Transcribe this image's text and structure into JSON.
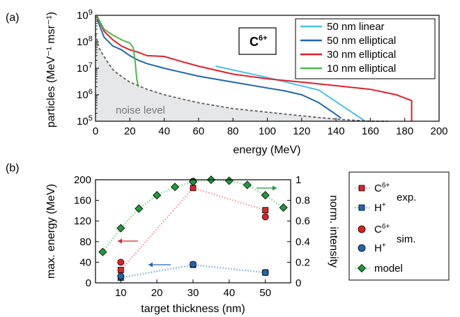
{
  "panel_labels": [
    "(a)",
    "(b)"
  ],
  "colors": {
    "linear50": "#45c1e8",
    "elliptical50": "#1f67b0",
    "elliptical30": "#e21f26",
    "elliptical10": "#4cb848",
    "noise": "#606060",
    "c_exp": "#d9262c",
    "h_exp": "#1f67b0",
    "c_sim": "#e21f26",
    "h_sim": "#1f67b0",
    "model": "#1f9a3a"
  },
  "chart_data": [
    {
      "type": "line",
      "panel": "(a)",
      "xlabel": "energy (MeV)",
      "ylabel": "particles (MeV⁻¹ msr⁻¹)",
      "xlim": [
        0,
        200
      ],
      "ylim": [
        100000,
        1000000000
      ],
      "yscale": "log",
      "x_ticks": [
        "0",
        "20",
        "40",
        "60",
        "80",
        "100",
        "120",
        "140",
        "160",
        "180",
        "200"
      ],
      "y_ticks": [
        {
          "base": "10",
          "exp": "5"
        },
        {
          "base": "10",
          "exp": "6"
        },
        {
          "base": "10",
          "exp": "7"
        },
        {
          "base": "10",
          "exp": "8"
        },
        {
          "base": "10",
          "exp": "9"
        }
      ],
      "annotation_box": {
        "base": "C",
        "sup": "6+"
      },
      "noise_label": "noise level",
      "legend_position": "top-right",
      "series": [
        {
          "name": "50 nm linear",
          "x": [
            70,
            100,
            130,
            157
          ],
          "y": [
            12000000,
            4500000,
            1500000,
            100000
          ]
        },
        {
          "name": "50 nm elliptical",
          "x": [
            1,
            5,
            10,
            15,
            20,
            25,
            30,
            40,
            60,
            80,
            100,
            110,
            120,
            130,
            140,
            143
          ],
          "y": [
            700000000,
            150000000,
            70000000,
            50000000,
            30000000,
            20000000,
            15000000,
            10000000,
            5000000,
            3000000,
            1800000,
            1400000,
            1000000,
            500000,
            180000,
            130000
          ]
        },
        {
          "name": "30 nm elliptical",
          "x": [
            1,
            5,
            10,
            15,
            20,
            25,
            30,
            40,
            50,
            60,
            80,
            100,
            120,
            140,
            160,
            175,
            184,
            184
          ],
          "y": [
            900000000,
            250000000,
            120000000,
            70000000,
            50000000,
            40000000,
            30000000,
            28000000,
            18000000,
            12000000,
            6000000,
            4000000,
            3000000,
            2200000,
            1600000,
            1000000,
            600000,
            100000
          ]
        },
        {
          "name": "10 nm elliptical",
          "x": [
            1,
            5,
            10,
            15,
            18,
            20,
            22,
            23,
            24,
            25
          ],
          "y": [
            900000000,
            300000000,
            180000000,
            120000000,
            100000000,
            90000000,
            60000000,
            20000000,
            4000000,
            2000000
          ]
        },
        {
          "name": "noise level",
          "x": [
            0,
            2,
            4,
            6,
            8,
            10,
            12,
            15,
            20,
            25,
            30,
            40,
            50,
            60,
            80,
            100,
            120,
            140,
            160,
            170
          ],
          "y": [
            200000000,
            60000000,
            35000000,
            22000000,
            14000000,
            9000000,
            7000000,
            5000000,
            3000000,
            2200000,
            1600000,
            1000000,
            700000,
            500000,
            300000,
            220000,
            160000,
            120000,
            100000,
            100000
          ]
        }
      ]
    },
    {
      "type": "scatter",
      "panel": "(b)",
      "xlabel": "target thickness (nm)",
      "ylabel": "max. energy (MeV)",
      "y2label": "norm. intensity",
      "xlim": [
        3,
        57
      ],
      "ylim": [
        0,
        200
      ],
      "y2lim": [
        0,
        1
      ],
      "x_ticks": [
        "10",
        "20",
        "30",
        "40",
        "50"
      ],
      "y_ticks": [
        "0",
        "40",
        "80",
        "120",
        "160",
        "200"
      ],
      "y2_ticks": [
        "0",
        "0.2",
        "0.4",
        "0.6",
        "0.8",
        "1"
      ],
      "legend_position": "right",
      "legend": {
        "exp_label": "exp.",
        "sim_label": "sim.",
        "c_base": "C",
        "c_sup": "6+",
        "h_base": "H",
        "h_sup": "+",
        "model_label": "model"
      },
      "series": [
        {
          "name": "C6+ exp.",
          "x": [
            10,
            30,
            50
          ],
          "y": [
            25,
            184,
            141
          ]
        },
        {
          "name": "H+ exp.",
          "x": [
            10,
            30,
            50
          ],
          "y": [
            10,
            35,
            20
          ]
        },
        {
          "name": "C6+ sim.",
          "x": [
            10,
            30,
            50
          ],
          "y": [
            40,
            197,
            128
          ]
        },
        {
          "name": "H+ sim.",
          "x": [
            10,
            30,
            50
          ],
          "y": [
            13,
            36,
            20
          ]
        },
        {
          "name": "model",
          "axis": "y2",
          "x": [
            5,
            10,
            15,
            20,
            25,
            30,
            35,
            40,
            45,
            50,
            55
          ],
          "y": [
            0.3,
            0.53,
            0.72,
            0.85,
            0.93,
            0.98,
            1.0,
            0.99,
            0.95,
            0.85,
            0.73
          ]
        }
      ]
    }
  ]
}
